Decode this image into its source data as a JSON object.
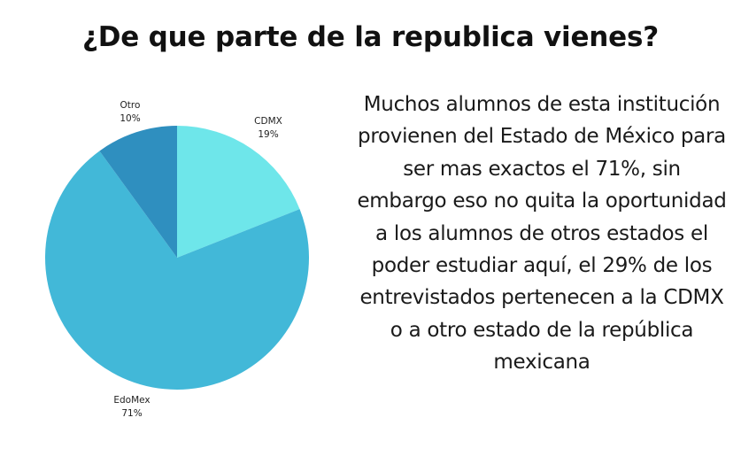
{
  "title": "¿De que parte de la republica vienes?",
  "description": "Muchos alumnos de esta institución provienen del Estado de México para ser mas exactos el 71%, sin embargo eso no quita la oportunidad a los alumnos de otros estados el poder estudiar aquí, el 29% de los entrevistados pertenecen a la CDMX o a otro estado de la república mexicana",
  "chart_data": {
    "type": "pie",
    "start_angle": "12 o'clock",
    "direction": "clockwise",
    "slices": [
      {
        "label": "CDMX",
        "value": 19,
        "value_label": "19%",
        "color": "#6ee6ea"
      },
      {
        "label": "EdoMex",
        "value": 71,
        "value_label": "71%",
        "color": "#42b8d8"
      },
      {
        "label": "Otro",
        "value": 10,
        "value_label": "10%",
        "color": "#2f8fbf"
      }
    ]
  }
}
